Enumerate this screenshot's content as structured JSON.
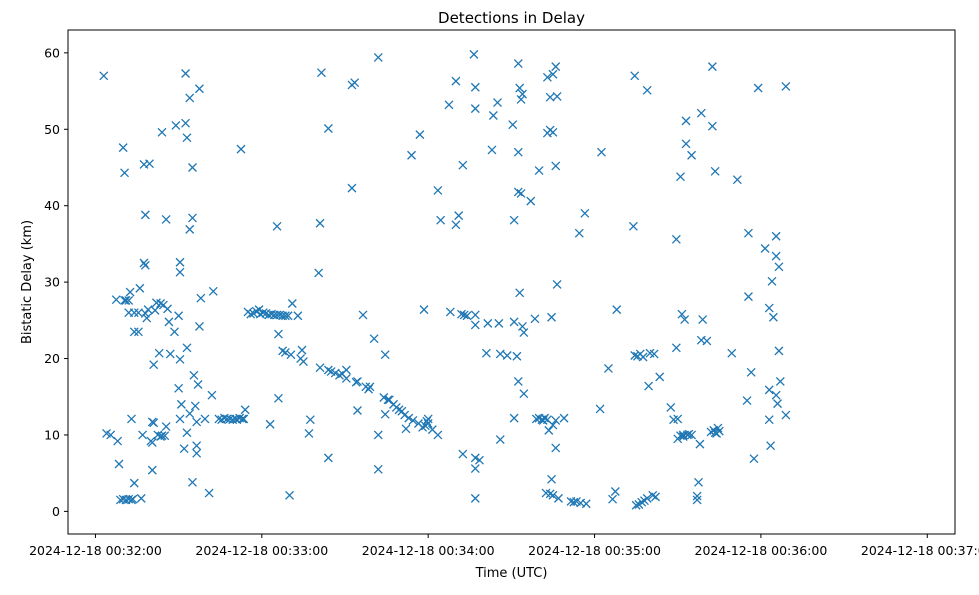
{
  "chart_data": {
    "type": "scatter",
    "title": "Detections in Delay",
    "xlabel": "Time (UTC)",
    "ylabel": "Bistatic Delay (km)",
    "marker": "x",
    "color": "#1f77b4",
    "grid": false,
    "x_unit": "seconds after 2024-12-18 00:32:00",
    "xlim": [
      -9.9,
      310.0
    ],
    "ylim": [
      -2.96,
      62.99
    ],
    "x_ticks": [
      {
        "value": 0,
        "label": "2024-12-18 00:32:00"
      },
      {
        "value": 60,
        "label": "2024-12-18 00:33:00"
      },
      {
        "value": 120,
        "label": "2024-12-18 00:34:00"
      },
      {
        "value": 180,
        "label": "2024-12-18 00:35:00"
      },
      {
        "value": 240,
        "label": "2024-12-18 00:36:00"
      },
      {
        "value": 300,
        "label": "2024-12-18 00:37:00"
      }
    ],
    "y_ticks": [
      {
        "value": 0,
        "label": "0"
      },
      {
        "value": 10,
        "label": "10"
      },
      {
        "value": 20,
        "label": "20"
      },
      {
        "value": 30,
        "label": "30"
      },
      {
        "value": 40,
        "label": "40"
      },
      {
        "value": 50,
        "label": "50"
      },
      {
        "value": 60,
        "label": "60"
      }
    ],
    "points": [
      [
        3.0,
        57.0
      ],
      [
        4.0,
        10.2
      ],
      [
        5.5,
        10.0
      ],
      [
        7.5,
        27.7
      ],
      [
        8.0,
        9.2
      ],
      [
        8.5,
        6.2
      ],
      [
        9.0,
        1.5
      ],
      [
        10.0,
        47.6
      ],
      [
        10.5,
        44.3
      ],
      [
        10.5,
        27.6
      ],
      [
        10.0,
        1.6
      ],
      [
        11.0,
        1.5
      ],
      [
        11.0,
        27.6
      ],
      [
        12.0,
        27.6
      ],
      [
        12.0,
        26.0
      ],
      [
        12.0,
        1.6
      ],
      [
        12.5,
        28.7
      ],
      [
        13.0,
        1.5
      ],
      [
        13.0,
        12.1
      ],
      [
        13.5,
        1.6
      ],
      [
        14.0,
        26.0
      ],
      [
        14.0,
        23.5
      ],
      [
        14.0,
        3.7
      ],
      [
        15.5,
        26.0
      ],
      [
        15.5,
        23.5
      ],
      [
        16.0,
        29.2
      ],
      [
        16.5,
        1.7
      ],
      [
        17.0,
        10.0
      ],
      [
        17.5,
        45.4
      ],
      [
        17.5,
        32.5
      ],
      [
        18.0,
        32.2
      ],
      [
        18.0,
        38.8
      ],
      [
        18.0,
        25.9
      ],
      [
        18.5,
        25.3
      ],
      [
        19.0,
        26.4
      ],
      [
        19.5,
        45.5
      ],
      [
        20.0,
        9.2
      ],
      [
        20.5,
        11.7
      ],
      [
        20.5,
        9.0
      ],
      [
        21.0,
        11.6
      ],
      [
        21.0,
        19.2
      ],
      [
        20.5,
        5.4
      ],
      [
        21.5,
        26.3
      ],
      [
        22.0,
        27.3
      ],
      [
        22.5,
        10.0
      ],
      [
        23.0,
        20.7
      ],
      [
        23.5,
        9.8
      ],
      [
        23.5,
        27.2
      ],
      [
        24.0,
        49.6
      ],
      [
        24.0,
        9.9
      ],
      [
        24.5,
        27.0
      ],
      [
        25.0,
        9.9
      ],
      [
        25.5,
        38.2
      ],
      [
        25.5,
        11.1
      ],
      [
        26.0,
        26.5
      ],
      [
        26.5,
        24.8
      ],
      [
        27.0,
        20.6
      ],
      [
        28.5,
        23.5
      ],
      [
        29.0,
        50.5
      ],
      [
        30.0,
        25.6
      ],
      [
        30.0,
        16.1
      ],
      [
        30.5,
        32.6
      ],
      [
        30.5,
        31.3
      ],
      [
        30.5,
        12.1
      ],
      [
        30.5,
        19.9
      ],
      [
        31.0,
        14.0
      ],
      [
        32.0,
        8.2
      ],
      [
        32.5,
        57.3
      ],
      [
        32.5,
        50.8
      ],
      [
        33.0,
        48.9
      ],
      [
        33.0,
        10.3
      ],
      [
        33.0,
        21.4
      ],
      [
        34.0,
        54.1
      ],
      [
        34.0,
        36.9
      ],
      [
        34.0,
        12.8
      ],
      [
        35.0,
        45.0
      ],
      [
        35.0,
        38.4
      ],
      [
        35.0,
        3.8
      ],
      [
        35.5,
        17.8
      ],
      [
        36.0,
        13.8
      ],
      [
        36.5,
        11.7
      ],
      [
        36.5,
        8.6
      ],
      [
        36.5,
        7.6
      ],
      [
        37.0,
        16.6
      ],
      [
        37.5,
        55.3
      ],
      [
        37.5,
        24.2
      ],
      [
        38.0,
        27.9
      ],
      [
        39.5,
        12.1
      ],
      [
        41.0,
        2.4
      ],
      [
        42.0,
        15.2
      ],
      [
        42.5,
        28.8
      ],
      [
        44.5,
        12.1
      ],
      [
        45.5,
        12.0
      ],
      [
        46.5,
        12.2
      ],
      [
        47.5,
        12.1
      ],
      [
        48.5,
        12.1
      ],
      [
        49.5,
        12.0
      ],
      [
        50.5,
        12.1
      ],
      [
        51.0,
        12.0
      ],
      [
        52.0,
        12.2
      ],
      [
        52.5,
        47.4
      ],
      [
        53.0,
        12.1
      ],
      [
        53.5,
        12.1
      ],
      [
        54.0,
        13.3
      ],
      [
        55.0,
        26.1
      ],
      [
        56.0,
        25.8
      ],
      [
        57.0,
        25.9
      ],
      [
        58.0,
        26.2
      ],
      [
        59.0,
        26.4
      ],
      [
        59.5,
        25.8
      ],
      [
        60.5,
        26.0
      ],
      [
        61.5,
        25.9
      ],
      [
        62.5,
        25.7
      ],
      [
        63.0,
        11.4
      ],
      [
        63.5,
        25.8
      ],
      [
        64.5,
        25.7
      ],
      [
        65.5,
        25.7
      ],
      [
        65.5,
        37.3
      ],
      [
        66.0,
        14.8
      ],
      [
        66.0,
        23.2
      ],
      [
        66.5,
        25.7
      ],
      [
        67.5,
        21.0
      ],
      [
        67.5,
        25.6
      ],
      [
        68.5,
        20.8
      ],
      [
        68.5,
        25.6
      ],
      [
        69.5,
        25.6
      ],
      [
        70.0,
        2.1
      ],
      [
        70.5,
        20.5
      ],
      [
        71.0,
        27.2
      ],
      [
        73.0,
        25.6
      ],
      [
        74.0,
        20.0
      ],
      [
        74.5,
        21.1
      ],
      [
        75.0,
        19.6
      ],
      [
        77.0,
        10.2
      ],
      [
        77.5,
        12.0
      ],
      [
        80.5,
        31.2
      ],
      [
        81.0,
        18.8
      ],
      [
        81.0,
        37.7
      ],
      [
        81.5,
        57.4
      ],
      [
        84.0,
        18.5
      ],
      [
        84.0,
        50.1
      ],
      [
        84.0,
        7.0
      ],
      [
        85.0,
        18.3
      ],
      [
        86.5,
        18.1
      ],
      [
        88.0,
        17.8
      ],
      [
        89.0,
        18.0
      ],
      [
        90.5,
        18.5
      ],
      [
        90.5,
        17.4
      ],
      [
        92.5,
        55.8
      ],
      [
        92.5,
        42.3
      ],
      [
        93.5,
        56.1
      ],
      [
        94.0,
        16.9
      ],
      [
        94.5,
        17.0
      ],
      [
        94.5,
        13.2
      ],
      [
        96.5,
        25.7
      ],
      [
        97.5,
        16.3
      ],
      [
        98.5,
        16.0
      ],
      [
        99.0,
        16.3
      ],
      [
        100.5,
        22.6
      ],
      [
        102.0,
        59.4
      ],
      [
        102.0,
        10.0
      ],
      [
        102.0,
        5.5
      ],
      [
        104.0,
        14.9
      ],
      [
        104.5,
        12.7
      ],
      [
        104.5,
        20.5
      ],
      [
        105.5,
        14.6
      ],
      [
        106.0,
        14.6
      ],
      [
        107.5,
        14.0
      ],
      [
        108.5,
        13.6
      ],
      [
        109.5,
        13.3
      ],
      [
        110.5,
        13.1
      ],
      [
        111.5,
        12.6
      ],
      [
        112.0,
        10.8
      ],
      [
        113.0,
        12.2
      ],
      [
        114.0,
        46.6
      ],
      [
        114.5,
        11.9
      ],
      [
        116.5,
        11.5
      ],
      [
        117.0,
        49.3
      ],
      [
        118.0,
        11.0
      ],
      [
        118.5,
        26.4
      ],
      [
        119.0,
        11.2
      ],
      [
        119.5,
        11.8
      ],
      [
        120.0,
        12.1
      ],
      [
        120.0,
        11.5
      ],
      [
        121.5,
        10.7
      ],
      [
        123.5,
        10.0
      ],
      [
        123.5,
        42.0
      ],
      [
        124.5,
        38.1
      ],
      [
        127.5,
        53.2
      ],
      [
        128.0,
        26.1
      ],
      [
        130.0,
        56.3
      ],
      [
        130.0,
        37.5
      ],
      [
        131.0,
        38.7
      ],
      [
        132.5,
        45.3
      ],
      [
        132.0,
        25.8
      ],
      [
        132.5,
        7.5
      ],
      [
        133.0,
        25.7
      ],
      [
        134.0,
        25.6
      ],
      [
        136.5,
        59.8
      ],
      [
        137.0,
        55.5
      ],
      [
        137.0,
        52.7
      ],
      [
        137.0,
        25.7
      ],
      [
        137.0,
        24.4
      ],
      [
        137.0,
        7.0
      ],
      [
        137.0,
        5.6
      ],
      [
        137.0,
        1.7
      ],
      [
        138.5,
        6.7
      ],
      [
        141.0,
        20.7
      ],
      [
        141.5,
        24.6
      ],
      [
        143.0,
        47.3
      ],
      [
        143.5,
        51.8
      ],
      [
        145.0,
        53.5
      ],
      [
        145.5,
        24.6
      ],
      [
        146.0,
        20.6
      ],
      [
        146.0,
        9.4
      ],
      [
        148.5,
        20.4
      ],
      [
        150.5,
        50.6
      ],
      [
        151.0,
        24.8
      ],
      [
        151.0,
        38.1
      ],
      [
        151.0,
        12.2
      ],
      [
        152.0,
        20.3
      ],
      [
        152.5,
        58.6
      ],
      [
        152.5,
        47.0
      ],
      [
        152.5,
        41.8
      ],
      [
        152.5,
        17.0
      ],
      [
        153.0,
        55.4
      ],
      [
        153.0,
        28.6
      ],
      [
        153.5,
        41.6
      ],
      [
        153.5,
        53.9
      ],
      [
        154.0,
        54.6
      ],
      [
        154.0,
        24.2
      ],
      [
        154.5,
        15.4
      ],
      [
        154.5,
        23.4
      ],
      [
        157.0,
        40.6
      ],
      [
        158.5,
        25.2
      ],
      [
        159.0,
        12.1
      ],
      [
        160.0,
        12.2
      ],
      [
        160.0,
        44.6
      ],
      [
        161.0,
        12.0
      ],
      [
        161.5,
        11.9
      ],
      [
        162.0,
        12.2
      ],
      [
        162.5,
        2.4
      ],
      [
        163.0,
        49.5
      ],
      [
        163.0,
        56.8
      ],
      [
        163.0,
        12.0
      ],
      [
        163.5,
        10.6
      ],
      [
        164.0,
        49.9
      ],
      [
        164.0,
        54.2
      ],
      [
        164.0,
        2.3
      ],
      [
        164.5,
        25.4
      ],
      [
        164.5,
        4.2
      ],
      [
        165.0,
        57.2
      ],
      [
        165.0,
        49.6
      ],
      [
        165.0,
        2.1
      ],
      [
        165.0,
        11.3
      ],
      [
        166.0,
        8.3
      ],
      [
        166.0,
        45.2
      ],
      [
        166.0,
        58.2
      ],
      [
        166.0,
        11.9
      ],
      [
        166.5,
        54.3
      ],
      [
        166.5,
        29.7
      ],
      [
        167.0,
        1.7
      ],
      [
        169.0,
        12.2
      ],
      [
        171.5,
        1.3
      ],
      [
        172.5,
        1.2
      ],
      [
        173.5,
        1.3
      ],
      [
        174.5,
        36.4
      ],
      [
        175.0,
        1.1
      ],
      [
        176.5,
        39.0
      ],
      [
        177.0,
        1.0
      ],
      [
        182.0,
        13.4
      ],
      [
        182.5,
        47.0
      ],
      [
        185.0,
        18.7
      ],
      [
        186.5,
        1.6
      ],
      [
        187.5,
        2.6
      ],
      [
        188.0,
        26.4
      ],
      [
        194.0,
        37.3
      ],
      [
        194.5,
        57.0
      ],
      [
        194.5,
        20.4
      ],
      [
        195.0,
        0.8
      ],
      [
        195.5,
        20.3
      ],
      [
        196.0,
        0.9
      ],
      [
        196.5,
        20.6
      ],
      [
        197.0,
        1.2
      ],
      [
        197.5,
        20.2
      ],
      [
        198.0,
        1.4
      ],
      [
        199.0,
        1.7
      ],
      [
        199.0,
        55.1
      ],
      [
        199.5,
        16.4
      ],
      [
        200.0,
        20.7
      ],
      [
        201.0,
        2.1
      ],
      [
        201.5,
        20.6
      ],
      [
        202.0,
        1.9
      ],
      [
        203.5,
        17.6
      ],
      [
        207.5,
        13.6
      ],
      [
        208.5,
        12.0
      ],
      [
        209.5,
        35.6
      ],
      [
        209.5,
        21.4
      ],
      [
        210.0,
        9.5
      ],
      [
        210.0,
        12.1
      ],
      [
        211.0,
        43.8
      ],
      [
        211.0,
        9.9
      ],
      [
        211.5,
        25.8
      ],
      [
        212.0,
        10.0
      ],
      [
        212.0,
        9.8
      ],
      [
        212.5,
        25.1
      ],
      [
        213.0,
        51.1
      ],
      [
        213.0,
        48.1
      ],
      [
        213.5,
        10.0
      ],
      [
        214.0,
        10.1
      ],
      [
        215.0,
        46.6
      ],
      [
        215.0,
        10.0
      ],
      [
        217.0,
        2.0
      ],
      [
        217.0,
        1.5
      ],
      [
        217.5,
        3.8
      ],
      [
        218.5,
        52.1
      ],
      [
        218.5,
        22.4
      ],
      [
        218.0,
        8.8
      ],
      [
        219.0,
        25.1
      ],
      [
        220.5,
        22.3
      ],
      [
        222.0,
        10.4
      ],
      [
        222.5,
        58.2
      ],
      [
        222.5,
        50.4
      ],
      [
        223.0,
        10.6
      ],
      [
        223.5,
        44.5
      ],
      [
        223.5,
        10.3
      ],
      [
        224.0,
        10.2
      ],
      [
        224.5,
        10.9
      ],
      [
        225.0,
        10.5
      ],
      [
        229.5,
        20.7
      ],
      [
        231.5,
        43.4
      ],
      [
        235.5,
        36.4
      ],
      [
        235.0,
        14.5
      ],
      [
        235.5,
        28.1
      ],
      [
        236.5,
        18.2
      ],
      [
        237.5,
        6.9
      ],
      [
        239.0,
        55.4
      ],
      [
        241.5,
        34.4
      ],
      [
        243.0,
        26.6
      ],
      [
        243.0,
        12.0
      ],
      [
        243.0,
        15.9
      ],
      [
        243.5,
        8.6
      ],
      [
        244.0,
        30.1
      ],
      [
        244.5,
        25.4
      ],
      [
        245.5,
        36.0
      ],
      [
        245.5,
        33.4
      ],
      [
        245.5,
        15.2
      ],
      [
        246.0,
        14.1
      ],
      [
        246.5,
        32.0
      ],
      [
        246.5,
        21.0
      ],
      [
        247.0,
        17.0
      ],
      [
        249.0,
        55.6
      ],
      [
        249.0,
        12.6
      ]
    ]
  }
}
